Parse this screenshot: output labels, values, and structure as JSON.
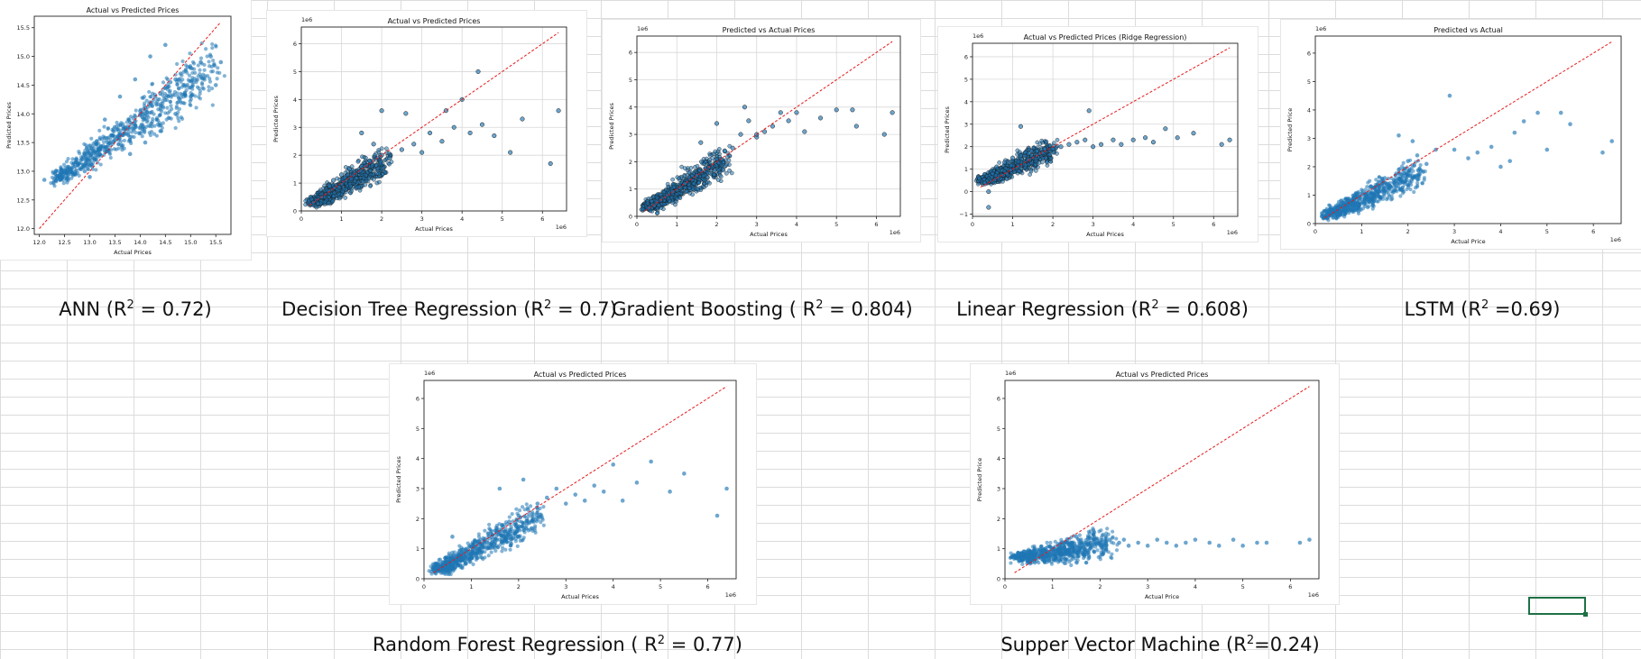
{
  "captions": [
    {
      "pre": "ANN (R",
      "sup": "2",
      "post": " = 0.72)"
    },
    {
      "pre": "Decision Tree Regression (R",
      "sup": "2",
      "post": " = 0.7)"
    },
    {
      "pre": "Gradient Boosting ( R",
      "sup": "2",
      "post": " = 0.804)"
    },
    {
      "pre": "Linear Regression (R",
      "sup": "2",
      "post": " = 0.608)"
    },
    {
      "pre": "LSTM (R",
      "sup": "2",
      "post": " =0.69)"
    },
    {
      "pre": "Random Forest Regression ( R",
      "sup": "2",
      "post": " = 0.77)"
    },
    {
      "pre": "Supper Vector Machine (R",
      "sup": "2",
      "post": "=0.24)"
    }
  ],
  "colors": {
    "points": "#1f77b4",
    "edge": "#1a1a1a",
    "ideal_line": "#e41a1c"
  },
  "chart_data": [
    {
      "type": "scatter",
      "title": "Actual vs Predicted Prices",
      "xlabel": "Actual Prices",
      "ylabel": "Predicted Prices",
      "xlim": [
        11.9,
        15.8
      ],
      "ylim": [
        11.9,
        15.7
      ],
      "xticks": [
        "12.0",
        "12.5",
        "13.0",
        "13.5",
        "14.0",
        "14.5",
        "15.0",
        "15.5"
      ],
      "yticks": [
        "12.0",
        "12.5",
        "13.0",
        "13.5",
        "14.0",
        "14.5",
        "15.0",
        "15.5"
      ],
      "offset_label": "",
      "grid": false,
      "ideal_line": [
        12.0,
        15.6
      ],
      "points": [
        [
          12.1,
          12.85
        ],
        [
          12.4,
          12.9
        ],
        [
          12.7,
          12.95
        ],
        [
          12.9,
          13.0
        ],
        [
          13.0,
          13.1
        ],
        [
          13.1,
          13.2
        ],
        [
          13.2,
          13.3
        ],
        [
          13.3,
          13.35
        ],
        [
          13.4,
          13.5
        ],
        [
          13.5,
          13.6
        ],
        [
          13.6,
          13.65
        ],
        [
          13.7,
          13.75
        ],
        [
          13.8,
          13.85
        ],
        [
          13.9,
          13.95
        ],
        [
          14.0,
          14.05
        ],
        [
          14.1,
          14.1
        ],
        [
          14.2,
          14.2
        ],
        [
          14.3,
          14.3
        ],
        [
          14.4,
          14.35
        ],
        [
          14.5,
          14.45
        ],
        [
          14.6,
          14.55
        ],
        [
          14.7,
          14.6
        ],
        [
          14.8,
          14.7
        ],
        [
          14.9,
          14.75
        ],
        [
          15.0,
          14.8
        ],
        [
          15.2,
          14.9
        ],
        [
          15.4,
          15.0
        ],
        [
          15.6,
          14.9
        ],
        [
          13.3,
          13.9
        ],
        [
          13.6,
          14.3
        ],
        [
          13.9,
          14.6
        ],
        [
          14.2,
          15.0
        ],
        [
          14.5,
          15.2
        ],
        [
          13.8,
          13.3
        ],
        [
          14.1,
          13.5
        ],
        [
          14.4,
          13.7
        ],
        [
          14.7,
          14.0
        ],
        [
          15.0,
          14.3
        ],
        [
          13.0,
          12.9
        ],
        [
          15.5,
          14.5
        ]
      ],
      "cloud": [
        [
          12.4,
          12.9
        ],
        [
          15.5,
          14.8
        ]
      ]
    },
    {
      "type": "scatter",
      "title": "Actual vs Predicted Prices",
      "xlabel": "Actual Prices",
      "ylabel": "Predicted Prices",
      "xlim": [
        0,
        6.6
      ],
      "ylim": [
        0,
        6.6
      ],
      "xticks": [
        "0",
        "1",
        "2",
        "3",
        "4",
        "5",
        "6"
      ],
      "yticks": [
        "0",
        "1",
        "2",
        "3",
        "4",
        "5",
        "6"
      ],
      "offset_label": "1e6",
      "grid": true,
      "ideal_line": [
        0.2,
        6.4
      ],
      "points": [
        [
          0.3,
          0.3
        ],
        [
          0.5,
          0.5
        ],
        [
          0.7,
          0.9
        ],
        [
          0.8,
          1.1
        ],
        [
          1.0,
          1.3
        ],
        [
          1.2,
          1.5
        ],
        [
          1.5,
          1.6
        ],
        [
          1.7,
          1.8
        ],
        [
          2.0,
          2.0
        ],
        [
          2.2,
          1.9
        ],
        [
          2.5,
          2.2
        ],
        [
          2.8,
          2.4
        ],
        [
          3.0,
          2.1
        ],
        [
          3.2,
          2.8
        ],
        [
          3.5,
          2.5
        ],
        [
          3.8,
          3.0
        ],
        [
          4.0,
          4.0
        ],
        [
          4.2,
          2.8
        ],
        [
          4.5,
          3.1
        ],
        [
          4.4,
          5.0
        ],
        [
          4.8,
          2.7
        ],
        [
          5.2,
          2.1
        ],
        [
          5.5,
          3.3
        ],
        [
          6.2,
          1.7
        ],
        [
          6.4,
          3.6
        ],
        [
          2.0,
          3.6
        ],
        [
          1.5,
          2.8
        ],
        [
          2.6,
          3.5
        ],
        [
          3.6,
          3.6
        ],
        [
          1.8,
          2.4
        ]
      ],
      "cloud": [
        [
          0.3,
          0.3
        ],
        [
          2.1,
          1.8
        ]
      ]
    },
    {
      "type": "scatter",
      "title": "Predicted vs Actual Prices",
      "xlabel": "Actual Prices",
      "ylabel": "Predicted Prices",
      "xlim": [
        0,
        6.6
      ],
      "ylim": [
        0,
        6.6
      ],
      "xticks": [
        "0",
        "1",
        "2",
        "3",
        "4",
        "5",
        "6"
      ],
      "yticks": [
        "0",
        "1",
        "2",
        "3",
        "4",
        "5",
        "6"
      ],
      "offset_label": "1e6",
      "grid": true,
      "ideal_line": [
        0.2,
        6.4
      ],
      "points": [
        [
          0.3,
          0.3
        ],
        [
          0.6,
          0.6
        ],
        [
          0.9,
          0.9
        ],
        [
          1.2,
          1.2
        ],
        [
          1.5,
          1.5
        ],
        [
          1.8,
          1.8
        ],
        [
          2.0,
          2.1
        ],
        [
          2.2,
          2.4
        ],
        [
          2.4,
          2.5
        ],
        [
          2.6,
          3.0
        ],
        [
          2.8,
          3.5
        ],
        [
          3.0,
          2.9
        ],
        [
          3.2,
          3.1
        ],
        [
          3.4,
          3.3
        ],
        [
          3.6,
          3.8
        ],
        [
          3.8,
          3.5
        ],
        [
          4.0,
          3.8
        ],
        [
          4.2,
          3.1
        ],
        [
          4.6,
          3.6
        ],
        [
          5.0,
          3.9
        ],
        [
          5.4,
          3.9
        ],
        [
          5.5,
          3.3
        ],
        [
          6.2,
          3.0
        ],
        [
          6.4,
          3.8
        ],
        [
          2.7,
          4.0
        ],
        [
          2.0,
          3.4
        ],
        [
          3.0,
          3.0
        ],
        [
          1.6,
          2.7
        ]
      ],
      "cloud": [
        [
          0.3,
          0.3
        ],
        [
          2.2,
          2.1
        ]
      ]
    },
    {
      "type": "scatter",
      "title": "Actual vs Predicted Prices (Ridge Regression)",
      "xlabel": "Actual Prices",
      "ylabel": "Predicted Prices",
      "xlim": [
        0,
        6.6
      ],
      "ylim": [
        -1.1,
        6.6
      ],
      "xticks": [
        "0",
        "1",
        "2",
        "3",
        "4",
        "5",
        "6"
      ],
      "yticks": [
        "−1",
        "0",
        "1",
        "2",
        "3",
        "4",
        "5",
        "6"
      ],
      "offset_label": "1e6",
      "grid": true,
      "ideal_line": [
        0.2,
        6.4
      ],
      "points": [
        [
          0.3,
          0.4
        ],
        [
          0.4,
          0.0
        ],
        [
          0.5,
          0.8
        ],
        [
          0.6,
          1.1
        ],
        [
          0.8,
          1.3
        ],
        [
          1.0,
          1.5
        ],
        [
          1.2,
          1.6
        ],
        [
          1.4,
          1.7
        ],
        [
          1.6,
          1.8
        ],
        [
          1.8,
          1.9
        ],
        [
          2.0,
          1.9
        ],
        [
          2.2,
          2.0
        ],
        [
          2.4,
          2.1
        ],
        [
          2.6,
          2.2
        ],
        [
          2.8,
          2.3
        ],
        [
          3.0,
          2.0
        ],
        [
          3.2,
          2.1
        ],
        [
          3.5,
          2.3
        ],
        [
          3.7,
          2.1
        ],
        [
          4.0,
          2.3
        ],
        [
          4.3,
          2.4
        ],
        [
          4.5,
          2.2
        ],
        [
          4.8,
          2.8
        ],
        [
          5.1,
          2.4
        ],
        [
          5.5,
          2.6
        ],
        [
          6.2,
          2.1
        ],
        [
          6.4,
          2.3
        ],
        [
          1.2,
          2.9
        ],
        [
          2.9,
          3.6
        ],
        [
          0.4,
          -0.7
        ]
      ],
      "cloud": [
        [
          0.3,
          0.5
        ],
        [
          2.0,
          1.9
        ]
      ]
    },
    {
      "type": "scatter",
      "title": "Predicted vs Actual",
      "xlabel": "Actual Price",
      "ylabel": "Predicted Price",
      "xlim": [
        0,
        6.6
      ],
      "ylim": [
        0,
        6.6
      ],
      "xticks": [
        "0",
        "1",
        "2",
        "3",
        "4",
        "5",
        "6"
      ],
      "yticks": [
        "0",
        "1",
        "2",
        "3",
        "4",
        "5",
        "6"
      ],
      "offset_label": "1e6",
      "grid": false,
      "ideal_line": [
        0.2,
        6.4
      ],
      "points": [
        [
          0.3,
          0.3
        ],
        [
          0.6,
          0.6
        ],
        [
          0.9,
          1.0
        ],
        [
          1.2,
          1.3
        ],
        [
          1.5,
          1.6
        ],
        [
          1.8,
          1.9
        ],
        [
          2.0,
          2.2
        ],
        [
          2.2,
          2.4
        ],
        [
          2.4,
          2.1
        ],
        [
          2.6,
          2.6
        ],
        [
          2.9,
          4.5
        ],
        [
          3.0,
          2.6
        ],
        [
          3.3,
          2.3
        ],
        [
          3.5,
          2.5
        ],
        [
          3.8,
          2.7
        ],
        [
          4.2,
          2.2
        ],
        [
          4.5,
          3.6
        ],
        [
          4.8,
          3.9
        ],
        [
          5.0,
          2.6
        ],
        [
          5.3,
          3.9
        ],
        [
          5.5,
          3.5
        ],
        [
          6.2,
          2.5
        ],
        [
          6.4,
          2.9
        ],
        [
          1.8,
          3.1
        ],
        [
          2.1,
          2.9
        ],
        [
          4.0,
          2.0
        ],
        [
          4.3,
          3.2
        ]
      ],
      "cloud": [
        [
          0.3,
          0.3
        ],
        [
          2.2,
          1.8
        ]
      ]
    },
    {
      "type": "scatter",
      "title": "Actual vs Predicted Prices",
      "xlabel": "Actual Prices",
      "ylabel": "Predicted Prices",
      "xlim": [
        0,
        6.6
      ],
      "ylim": [
        0,
        6.6
      ],
      "xticks": [
        "0",
        "1",
        "2",
        "3",
        "4",
        "5",
        "6"
      ],
      "yticks": [
        "0",
        "1",
        "2",
        "3",
        "4",
        "5",
        "6"
      ],
      "offset_label": "1e6",
      "grid": false,
      "ideal_line": [
        0.2,
        6.4
      ],
      "points": [
        [
          0.3,
          0.3
        ],
        [
          0.6,
          0.7
        ],
        [
          0.9,
          1.0
        ],
        [
          1.2,
          1.3
        ],
        [
          1.5,
          1.6
        ],
        [
          1.8,
          1.9
        ],
        [
          2.0,
          2.1
        ],
        [
          2.2,
          2.3
        ],
        [
          2.4,
          2.5
        ],
        [
          2.6,
          2.7
        ],
        [
          2.8,
          3.0
        ],
        [
          3.0,
          2.5
        ],
        [
          3.2,
          2.8
        ],
        [
          3.4,
          2.6
        ],
        [
          3.6,
          3.1
        ],
        [
          3.8,
          2.9
        ],
        [
          4.0,
          3.8
        ],
        [
          4.2,
          2.6
        ],
        [
          4.5,
          3.2
        ],
        [
          4.8,
          3.9
        ],
        [
          5.2,
          2.9
        ],
        [
          5.5,
          3.5
        ],
        [
          6.2,
          2.1
        ],
        [
          6.4,
          3.0
        ],
        [
          1.6,
          3.0
        ],
        [
          2.1,
          3.3
        ],
        [
          0.6,
          1.4
        ]
      ],
      "cloud": [
        [
          0.3,
          0.3
        ],
        [
          2.4,
          2.1
        ]
      ]
    },
    {
      "type": "scatter",
      "title": "Actual vs Predicted Prices",
      "xlabel": "Actual Price",
      "ylabel": "Predicted Price",
      "xlim": [
        0,
        6.6
      ],
      "ylim": [
        0,
        6.6
      ],
      "xticks": [
        "0",
        "1",
        "2",
        "3",
        "4",
        "5",
        "6"
      ],
      "yticks": [
        "0",
        "1",
        "2",
        "3",
        "4",
        "5",
        "6"
      ],
      "offset_label": "1e6",
      "grid": false,
      "ideal_line": [
        0.2,
        6.4
      ],
      "points": [
        [
          0.3,
          0.6
        ],
        [
          0.5,
          0.7
        ],
        [
          0.8,
          0.9
        ],
        [
          1.0,
          1.0
        ],
        [
          1.2,
          1.1
        ],
        [
          1.4,
          1.2
        ],
        [
          1.6,
          1.2
        ],
        [
          1.8,
          1.2
        ],
        [
          2.0,
          1.2
        ],
        [
          2.2,
          1.3
        ],
        [
          2.4,
          1.2
        ],
        [
          2.6,
          1.1
        ],
        [
          2.8,
          1.2
        ],
        [
          3.0,
          1.1
        ],
        [
          3.2,
          1.3
        ],
        [
          3.4,
          1.2
        ],
        [
          3.6,
          1.1
        ],
        [
          3.8,
          1.2
        ],
        [
          4.0,
          1.3
        ],
        [
          4.3,
          1.2
        ],
        [
          4.5,
          1.1
        ],
        [
          4.8,
          1.3
        ],
        [
          5.0,
          1.1
        ],
        [
          5.3,
          1.2
        ],
        [
          5.5,
          1.2
        ],
        [
          6.2,
          1.2
        ],
        [
          6.4,
          1.3
        ],
        [
          1.5,
          1.4
        ],
        [
          2.5,
          1.3
        ]
      ],
      "cloud": [
        [
          0.3,
          0.7
        ],
        [
          2.2,
          1.2
        ]
      ]
    }
  ]
}
